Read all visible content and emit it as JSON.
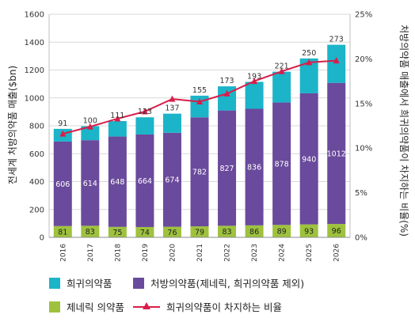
{
  "colors": {
    "rare": "#1cb4c8",
    "prescription": "#6a4a9c",
    "generic": "#9ec23d",
    "share_line": "#d81e4a",
    "grid": "#d9d9d9"
  },
  "legend": {
    "rare": "희귀의약품",
    "prescription": "처방의약품(제네릭, 희귀의약품 제외)",
    "generic": "제네릭 의약품",
    "share": "희귀의약품이 차지하는 비율"
  },
  "chart_data": {
    "type": "bar",
    "stacked": true,
    "categories": [
      "2016",
      "2017",
      "2018",
      "2019",
      "2020",
      "2021",
      "2022",
      "2023",
      "2024",
      "2025",
      "2026"
    ],
    "series": [
      {
        "name": "제네릭 의약품",
        "values": [
          81,
          83,
          75,
          74,
          76,
          79,
          83,
          86,
          89,
          93,
          96
        ]
      },
      {
        "name": "처방의약품(제네릭, 희귀의약품 제외)",
        "values": [
          606,
          614,
          648,
          664,
          674,
          782,
          827,
          836,
          878,
          940,
          1012
        ]
      },
      {
        "name": "희귀의약품",
        "values": [
          91,
          100,
          111,
          123,
          137,
          155,
          173,
          193,
          221,
          250,
          273
        ]
      }
    ],
    "line_series": {
      "name": "희귀의약품이 차지하는 비율",
      "axis": "right",
      "values": [
        11.6,
        12.4,
        13.3,
        14.1,
        15.5,
        15.2,
        16.1,
        17.5,
        18.6,
        19.6,
        19.8
      ]
    },
    "ylabel": "전세계 처방의약품 매출($bn)",
    "y2label": "처방의약품 매출에서 희귀의약품이 차지하는 비율(%)",
    "ylim": [
      0,
      1600
    ],
    "y2lim": [
      0,
      25
    ],
    "yticks": [
      "0",
      "200",
      "400",
      "600",
      "800",
      "1000",
      "1200",
      "1400",
      "1600"
    ],
    "y2ticks": [
      "0%",
      "5%",
      "10%",
      "15%",
      "20%",
      "25%"
    ],
    "grid": true,
    "legend_position": "bottom"
  }
}
